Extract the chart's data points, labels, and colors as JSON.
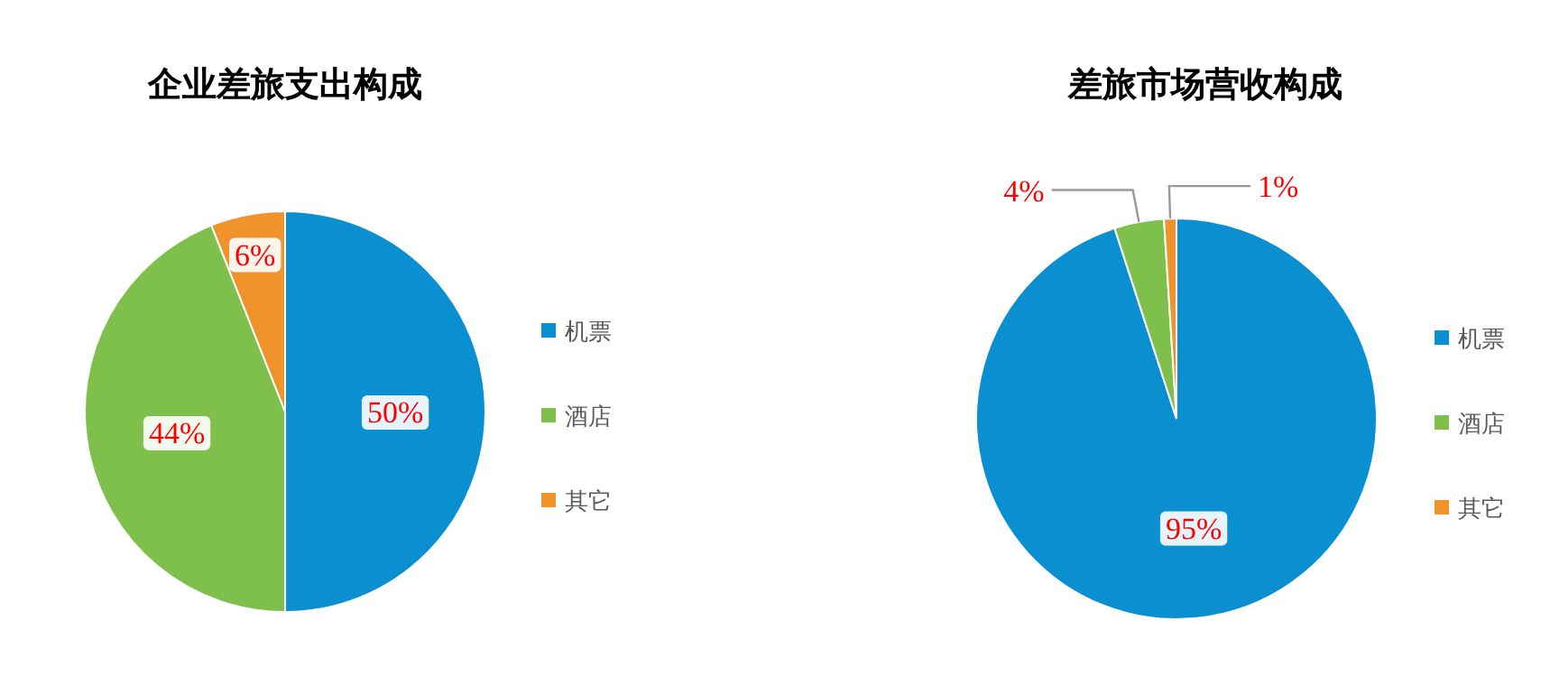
{
  "chart_data": [
    {
      "type": "pie",
      "title": "企业差旅支出构成",
      "categories": [
        "机票",
        "酒店",
        "其它"
      ],
      "values": [
        50,
        44,
        6
      ],
      "value_labels": [
        "50%",
        "44%",
        "6%"
      ],
      "colors": [
        "#0a8fd0",
        "#7ec04b",
        "#f0932a"
      ],
      "legend": "right"
    },
    {
      "type": "pie",
      "title": "差旅市场营收构成",
      "categories": [
        "机票",
        "酒店",
        "其它"
      ],
      "values": [
        95,
        4,
        1
      ],
      "value_labels": [
        "95%",
        "4%",
        "1%"
      ],
      "colors": [
        "#0a8fd0",
        "#7ec04b",
        "#f0932a"
      ],
      "legend": "right"
    }
  ]
}
